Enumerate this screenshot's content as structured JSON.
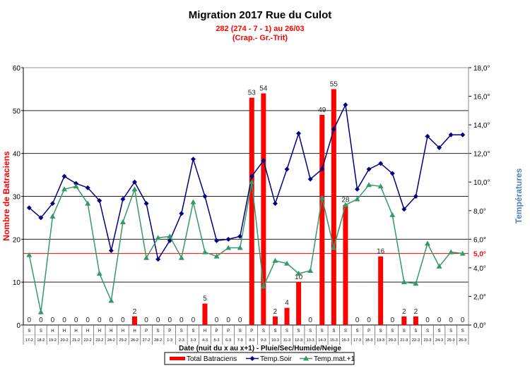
{
  "chart_data": {
    "type": "bar+line",
    "title": "Migration  2017 Rue du Culot",
    "subtitle_lines": [
      "282 (274 - 7 - 1) au 26/03",
      "(Crap.- Gr.-Trit)"
    ],
    "xlabel": "Date (nuit du x au x+1) - Pluie/Sec/Humide/Neige",
    "ylabel_left": "Nombre de Batraciens",
    "ylabel_right": "Températures",
    "ylim_left": [
      0,
      60
    ],
    "yticks_left": [
      "0",
      "10",
      "20",
      "30",
      "40",
      "50",
      "60"
    ],
    "ylim_right": [
      0,
      18
    ],
    "yticks_right": [
      "0,0°",
      "2,0°",
      "4,0°",
      "6,0°",
      "8,0°",
      "10,0°",
      "12,0°",
      "14,0°",
      "16,0°",
      "18,0°"
    ],
    "reference_line": {
      "value": 5.0,
      "label": "5,0°",
      "color": "#ff0000"
    },
    "grid": true,
    "legend_placement": "bottom",
    "categories": [
      "17-2",
      "18-2",
      "19-2",
      "20-2",
      "21-2",
      "22-2",
      "23-2",
      "24-2",
      "25-2",
      "26-2",
      "27-2",
      "28-2",
      "1-3",
      "2-3",
      "3-3",
      "4-3",
      "5-3",
      "6-3",
      "7-3",
      "8-3",
      "9-3",
      "10-3",
      "11-3",
      "12-3",
      "13-3",
      "14-3",
      "15-3",
      "16-3",
      "17-3",
      "18-3",
      "19-3",
      "20-3",
      "21-3",
      "22-3",
      "23-3",
      "24-3",
      "25-3",
      "26-3"
    ],
    "weather": [
      "S",
      "S",
      "H",
      "H",
      "H",
      "H",
      "H",
      "H",
      "H",
      "H",
      "P",
      "S",
      "P",
      "S",
      "S",
      "H",
      "P",
      "P",
      "S",
      "P",
      "S",
      "S",
      "S",
      "S",
      "S",
      "S",
      "S",
      "S",
      "S",
      "P",
      "S",
      "S",
      "S",
      "S",
      "S",
      "S",
      "S",
      "S"
    ],
    "series": [
      {
        "name": "Total Batraciens",
        "type": "bar",
        "axis": "left",
        "color": "#ff0000",
        "values": [
          0,
          0,
          0,
          0,
          0,
          0,
          0,
          0,
          0,
          2,
          0,
          0,
          0,
          0,
          0,
          5,
          0,
          0,
          0,
          53,
          54,
          2,
          4,
          10,
          0,
          49,
          55,
          28,
          0,
          0,
          16,
          0,
          2,
          2,
          0,
          0,
          0,
          0
        ]
      },
      {
        "name": "Temp.Soir",
        "type": "line",
        "axis": "right",
        "color": "#000080",
        "marker": "diamond",
        "values": [
          8.2,
          7.5,
          8.5,
          10.4,
          9.9,
          9.6,
          8.7,
          5.2,
          8.8,
          10.0,
          8.5,
          4.6,
          5.9,
          7.8,
          11.6,
          9.0,
          5.9,
          6.0,
          6.2,
          10.4,
          11.5,
          8.5,
          10.9,
          13.4,
          10.2,
          10.9,
          13.7,
          15.4,
          9.5,
          10.9,
          11.3,
          10.6,
          8.1,
          9.0,
          13.2,
          12.4,
          13.3,
          13.3
        ]
      },
      {
        "name": "Temp.mat.+1",
        "type": "line",
        "axis": "right",
        "color": "#339966",
        "marker": "triangle",
        "values": [
          4.9,
          0.9,
          7.6,
          9.5,
          9.7,
          8.5,
          3.6,
          1.7,
          7.2,
          9.5,
          4.7,
          6.1,
          6.2,
          4.7,
          8.6,
          5.1,
          4.8,
          5.4,
          5.4,
          10.0,
          2.7,
          4.5,
          4.3,
          3.6,
          3.8,
          8.9,
          5.4,
          8.4,
          8.8,
          9.8,
          9.7,
          7.7,
          3.0,
          2.9,
          5.7,
          4.1,
          5.1,
          5.0
        ]
      }
    ],
    "right_label_color": "#4f81bd",
    "left_label_color": "#ff0000"
  }
}
